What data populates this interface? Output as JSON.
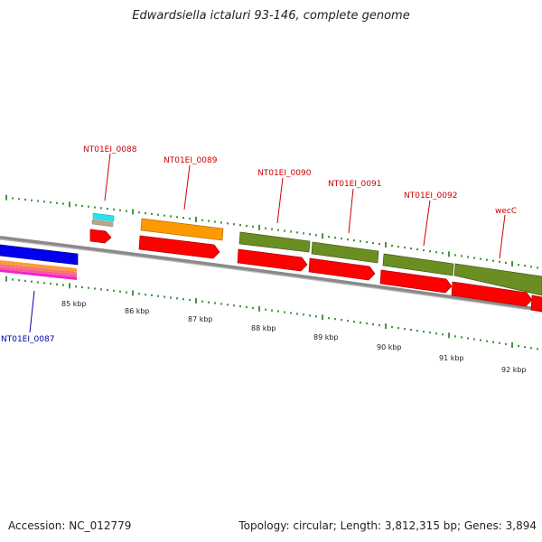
{
  "title": "Edwardsiella ictaluri 93-146, complete genome",
  "accession": "Accession: NC_012779",
  "summary": "Topology: circular; Length: 3,812,315 bp; Genes: 3,894",
  "colors": {
    "cds": "#ff0000",
    "orange_gene": "#ff9900",
    "olive_gene": "#6b8e23",
    "blue_gene": "#0000ee",
    "cyan_gene": "#00ffff",
    "ticks": "#1a7a1a",
    "label_red": "#cc0000",
    "label_blue": "#0000aa",
    "backbone": "#8a8a8a"
  },
  "scale_labels": [
    "85 kbp",
    "86 kbp",
    "87 kbp",
    "88 kbp",
    "89 kbp",
    "90 kbp",
    "91 kbp",
    "92 kbp"
  ],
  "gene_labels": [
    {
      "id": "NT01EI_0088",
      "color": "red"
    },
    {
      "id": "NT01EI_0089",
      "color": "red"
    },
    {
      "id": "NT01EI_0090",
      "color": "red"
    },
    {
      "id": "NT01EI_0091",
      "color": "red"
    },
    {
      "id": "NT01EI_0092",
      "color": "red"
    },
    {
      "id": "wecC",
      "color": "red"
    },
    {
      "id": "NT01EI_0087",
      "color": "blue"
    }
  ]
}
